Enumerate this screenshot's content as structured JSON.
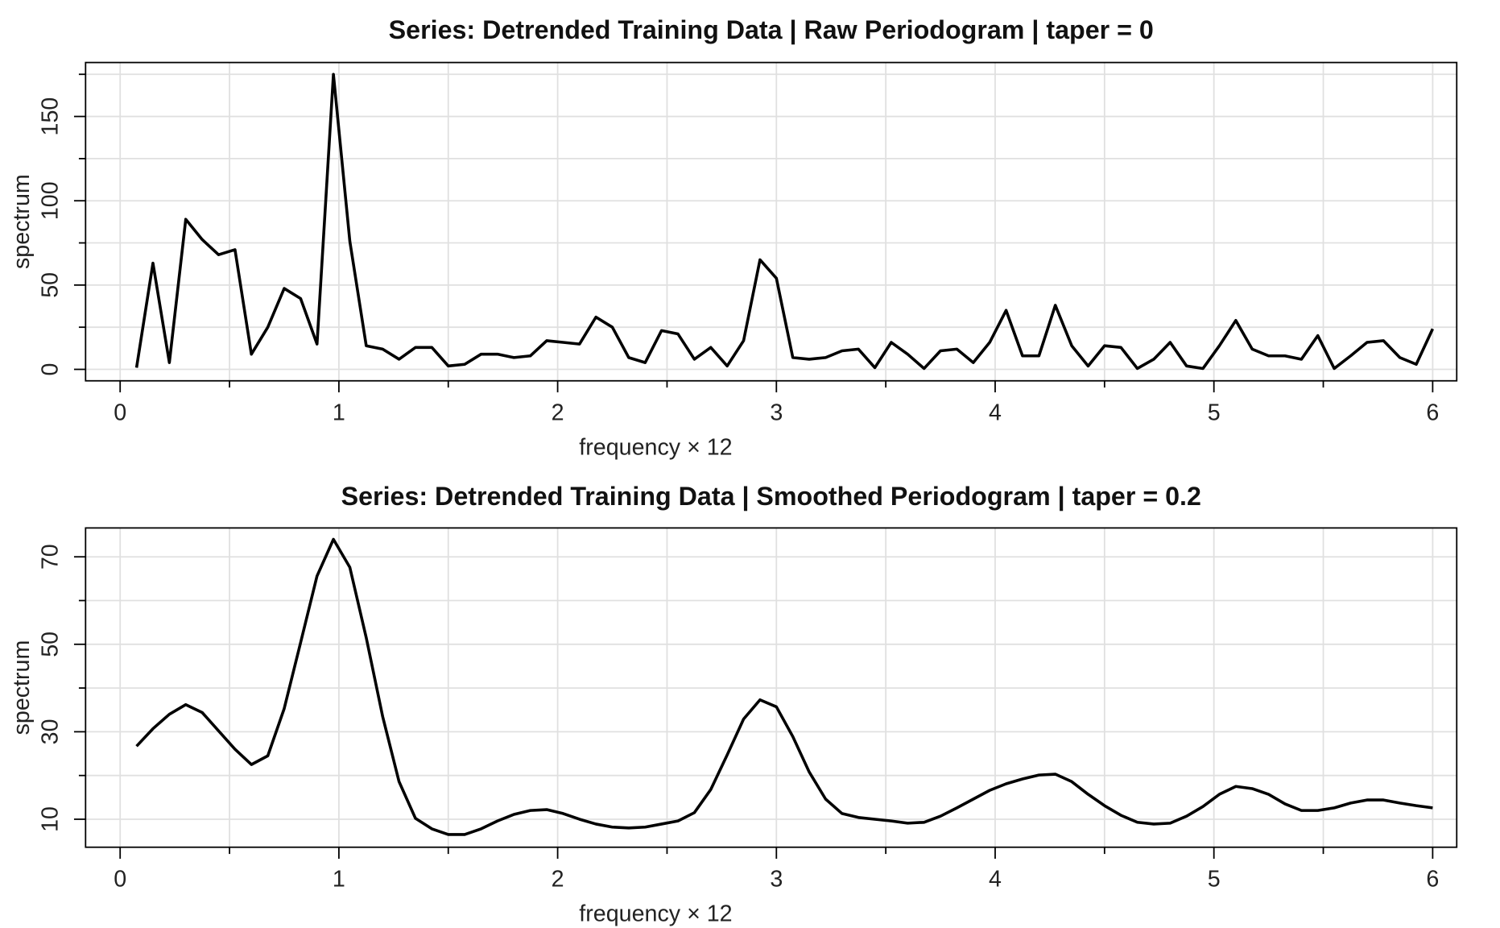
{
  "chart_data": [
    {
      "type": "line",
      "title": "Series: Detrended Training Data | Raw Periodogram | taper = 0",
      "x_label": "frequency × 12",
      "y_label": "spectrum",
      "x": [
        0.075,
        0.15,
        0.225,
        0.3,
        0.375,
        0.45,
        0.525,
        0.6,
        0.675,
        0.75,
        0.825,
        0.9,
        0.975,
        1.05,
        1.125,
        1.2,
        1.275,
        1.35,
        1.425,
        1.5,
        1.575,
        1.65,
        1.725,
        1.8,
        1.875,
        1.95,
        2.025,
        2.1,
        2.175,
        2.25,
        2.325,
        2.4,
        2.475,
        2.55,
        2.625,
        2.7,
        2.775,
        2.85,
        2.925,
        3,
        3.075,
        3.15,
        3.225,
        3.3,
        3.375,
        3.45,
        3.525,
        3.6,
        3.675,
        3.75,
        3.825,
        3.9,
        3.975,
        4.05,
        4.125,
        4.2,
        4.275,
        4.35,
        4.425,
        4.5,
        4.575,
        4.65,
        4.725,
        4.8,
        4.875,
        4.95,
        5.025,
        5.1,
        5.175,
        5.25,
        5.325,
        5.4,
        5.475,
        5.55,
        5.625,
        5.7,
        5.775,
        5.85,
        5.925,
        6
      ],
      "series": [
        {
          "color": "#000000",
          "values": [
            1,
            63,
            4,
            89,
            77,
            68,
            71,
            9,
            25,
            48,
            42,
            15,
            175,
            76,
            14,
            12,
            6,
            13,
            13,
            2,
            3,
            9,
            9,
            7,
            8,
            17,
            16,
            15,
            31,
            25,
            7,
            4,
            23,
            21,
            6,
            13,
            2,
            17,
            65,
            54,
            7,
            6,
            7,
            11,
            12,
            1,
            16,
            9,
            0.5,
            11,
            12,
            4,
            16,
            35,
            8,
            8,
            38,
            14,
            2,
            14,
            13,
            0.5,
            6,
            16,
            2,
            0.5,
            14,
            29,
            12,
            8,
            8,
            6,
            20,
            0.5,
            8,
            16,
            17,
            7,
            3,
            24
          ]
        }
      ],
      "xlim": [
        -0.158,
        6.11
      ],
      "ylim": [
        -6.8,
        182
      ],
      "xticks": [
        0,
        1,
        2,
        3,
        4,
        5,
        6
      ],
      "x_minor_ticks": [
        0.5,
        1.5,
        2.5,
        3.5,
        4.5,
        5.5
      ],
      "yticks": [
        0,
        50,
        100,
        150
      ],
      "y_minor_ticks": [
        25,
        75,
        125,
        175
      ],
      "grid": true
    },
    {
      "type": "line",
      "title": "Series: Detrended Training Data | Smoothed Periodogram | taper = 0.2",
      "x_label": "frequency × 12",
      "y_label": "spectrum",
      "x": [
        0.075,
        0.15,
        0.225,
        0.3,
        0.375,
        0.45,
        0.525,
        0.6,
        0.675,
        0.75,
        0.825,
        0.9,
        0.975,
        1.05,
        1.125,
        1.2,
        1.275,
        1.35,
        1.425,
        1.5,
        1.575,
        1.65,
        1.725,
        1.8,
        1.875,
        1.95,
        2.025,
        2.1,
        2.175,
        2.25,
        2.325,
        2.4,
        2.475,
        2.55,
        2.625,
        2.7,
        2.775,
        2.85,
        2.925,
        3,
        3.075,
        3.15,
        3.225,
        3.3,
        3.375,
        3.45,
        3.525,
        3.6,
        3.675,
        3.75,
        3.825,
        3.9,
        3.975,
        4.05,
        4.125,
        4.2,
        4.275,
        4.35,
        4.425,
        4.5,
        4.575,
        4.65,
        4.725,
        4.8,
        4.875,
        4.95,
        5.025,
        5.1,
        5.175,
        5.25,
        5.325,
        5.4,
        5.475,
        5.55,
        5.625,
        5.7,
        5.775,
        5.85,
        5.925,
        6
      ],
      "series": [
        {
          "color": "#000000",
          "values": [
            26.7,
            30.7,
            34,
            36.2,
            34.4,
            30.2,
            26,
            22.5,
            24.5,
            35.3,
            50.4,
            65.6,
            74,
            67.6,
            51.5,
            33.5,
            18.6,
            10.2,
            7.8,
            6.5,
            6.5,
            7.8,
            9.6,
            11.1,
            12,
            12.2,
            11.3,
            10,
            8.9,
            8.2,
            8,
            8.2,
            8.9,
            9.6,
            11.5,
            16.8,
            24.7,
            32.9,
            37.3,
            35.7,
            28.9,
            20.8,
            14.6,
            11.3,
            10.4,
            10,
            9.6,
            9.1,
            9.3,
            10.7,
            12.6,
            14.6,
            16.6,
            18.1,
            19.2,
            20.1,
            20.3,
            18.6,
            15.7,
            13.1,
            10.9,
            9.3,
            8.9,
            9.1,
            10.7,
            12.9,
            15.7,
            17.5,
            17,
            15.7,
            13.5,
            12,
            12,
            12.6,
            13.7,
            14.4,
            14.4,
            13.7,
            13.1,
            12.6
          ]
        }
      ],
      "xlim": [
        -0.158,
        6.11
      ],
      "ylim": [
        3.6,
        76.6
      ],
      "xticks": [
        0,
        1,
        2,
        3,
        4,
        5,
        6
      ],
      "x_minor_ticks": [
        0.5,
        1.5,
        2.5,
        3.5,
        4.5,
        5.5
      ],
      "yticks": [
        10,
        30,
        50,
        70
      ],
      "y_minor_ticks": [
        20,
        40,
        60
      ],
      "grid": true
    }
  ]
}
